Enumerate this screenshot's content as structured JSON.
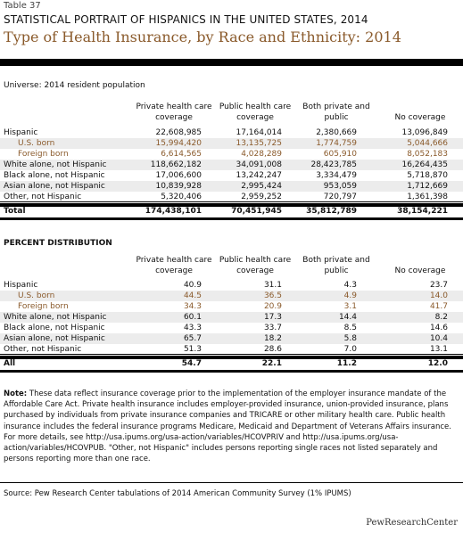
{
  "table_label": "Table 37",
  "kicker": "STATISTICAL PORTRAIT OF HISPANICS IN THE UNITED STATES, 2014",
  "title": "Type of Health Insurance, by Race and Ethnicity: 2014",
  "universe": "Universe: 2014 resident population",
  "columns": [
    "Private health care coverage",
    "Public health care coverage",
    "Both private and public",
    "No coverage"
  ],
  "counts": {
    "rows": [
      {
        "label": "Hispanic",
        "values": [
          "22,608,985",
          "17,164,014",
          "2,380,669",
          "13,096,849"
        ]
      },
      {
        "label": "U.S. born",
        "values": [
          "15,994,420",
          "13,135,725",
          "1,774,759",
          "5,044,666"
        ]
      },
      {
        "label": "Foreign born",
        "values": [
          "6,614,565",
          "4,028,289",
          "605,910",
          "8,052,183"
        ]
      },
      {
        "label": "White alone, not Hispanic",
        "values": [
          "118,662,182",
          "34,091,008",
          "28,423,785",
          "16,264,435"
        ]
      },
      {
        "label": "Black alone, not Hispanic",
        "values": [
          "17,006,600",
          "13,242,247",
          "3,334,479",
          "5,718,870"
        ]
      },
      {
        "label": "Asian alone, not Hispanic",
        "values": [
          "10,839,928",
          "2,995,424",
          "953,059",
          "1,712,669"
        ]
      },
      {
        "label": "Other, not Hispanic",
        "values": [
          "5,320,406",
          "2,959,252",
          "720,797",
          "1,361,398"
        ]
      }
    ],
    "total": {
      "label": "Total",
      "values": [
        "174,438,101",
        "70,451,945",
        "35,812,789",
        "38,154,221"
      ]
    }
  },
  "percent": {
    "section_title": "PERCENT DISTRIBUTION",
    "rows": [
      {
        "label": "Hispanic",
        "values": [
          "40.9",
          "31.1",
          "4.3",
          "23.7"
        ]
      },
      {
        "label": "U.S. born",
        "values": [
          "44.5",
          "36.5",
          "4.9",
          "14.0"
        ]
      },
      {
        "label": "Foreign born",
        "values": [
          "34.3",
          "20.9",
          "3.1",
          "41.7"
        ]
      },
      {
        "label": "White alone, not Hispanic",
        "values": [
          "60.1",
          "17.3",
          "14.4",
          "8.2"
        ]
      },
      {
        "label": "Black alone, not Hispanic",
        "values": [
          "43.3",
          "33.7",
          "8.5",
          "14.6"
        ]
      },
      {
        "label": "Asian alone, not Hispanic",
        "values": [
          "65.7",
          "18.2",
          "5.8",
          "10.4"
        ]
      },
      {
        "label": "Other, not Hispanic",
        "values": [
          "51.3",
          "28.6",
          "7.0",
          "13.1"
        ]
      }
    ],
    "total": {
      "label": "All",
      "values": [
        "54.7",
        "22.1",
        "11.2",
        "12.0"
      ]
    }
  },
  "note_label": "Note:",
  "note_text": "These data reflect insurance coverage prior to the implementation of the employer insurance mandate of the Affordable Care Act. Private health insurance includes employer-provided insurance, union-provided insurance, plans purchased by individuals from private insurance companies and TRICARE or other military health care. Public health insurance includes the federal insurance programs Medicare, Medicaid and Department of Veterans Affairs insurance. For more details, see http://usa.ipums.org/usa-action/variables/HCOVPRIV and http://usa.ipums.org/usa-action/variables/HCOVPUB. \"Other, not Hispanic\" includes persons reporting single races not listed separately and persons reporting more than one race.",
  "source": "Source: Pew Research Center tabulations of 2014 American Community Survey (1% IPUMS)",
  "logo": "PewResearchCenter",
  "colors": {
    "accent": "#8a5a2b",
    "stripe": "#ececec"
  }
}
